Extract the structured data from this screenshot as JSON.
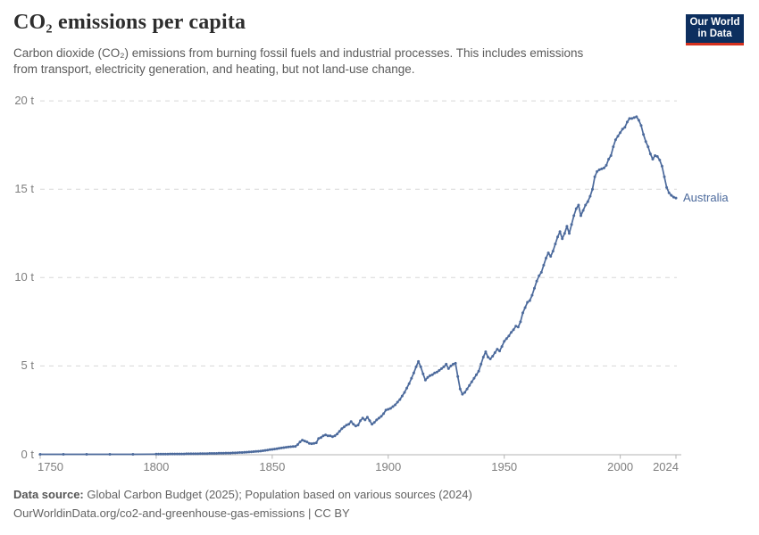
{
  "header": {
    "title": "CO₂ emissions per capita",
    "subtitle_lines": [
      "Carbon dioxide (CO₂) emissions from burning fossil fuels and industrial processes. This includes emissions",
      "from transport, electricity generation, and heating, but not land-use change."
    ],
    "logo": {
      "line1": "Our World",
      "line2": "in Data",
      "bg_color": "#0d2f5f",
      "accent_color": "#d5311e"
    }
  },
  "chart_data": {
    "type": "line",
    "title": "CO₂ emissions per capita",
    "xlabel": "",
    "ylabel": "",
    "x_range": [
      1750,
      2024
    ],
    "ylim": [
      0,
      20
    ],
    "grid": "horizontal-dashed",
    "legend_position": "end-of-line-label",
    "y_ticks": [
      {
        "value": 0,
        "label": "0 t"
      },
      {
        "value": 5,
        "label": "5 t"
      },
      {
        "value": 10,
        "label": "10 t"
      },
      {
        "value": 15,
        "label": "15 t"
      },
      {
        "value": 20,
        "label": "20 t"
      }
    ],
    "x_ticks": [
      {
        "value": 1750,
        "label": "1750"
      },
      {
        "value": 1800,
        "label": "1800"
      },
      {
        "value": 1850,
        "label": "1850"
      },
      {
        "value": 1900,
        "label": "1900"
      },
      {
        "value": 1950,
        "label": "1950"
      },
      {
        "value": 2000,
        "label": "2000"
      },
      {
        "value": 2024,
        "label": "2024"
      }
    ],
    "series": [
      {
        "name": "Australia",
        "color": "#4C6A9C",
        "unit": "t",
        "points": [
          [
            1750,
            0
          ],
          [
            1760,
            0
          ],
          [
            1770,
            0
          ],
          [
            1780,
            0
          ],
          [
            1790,
            0
          ],
          [
            1800,
            0.01
          ],
          [
            1801,
            0.01
          ],
          [
            1802,
            0.01
          ],
          [
            1803,
            0.01
          ],
          [
            1804,
            0.01
          ],
          [
            1805,
            0.01
          ],
          [
            1806,
            0.02
          ],
          [
            1807,
            0.02
          ],
          [
            1808,
            0.02
          ],
          [
            1809,
            0.02
          ],
          [
            1810,
            0.02
          ],
          [
            1811,
            0.02
          ],
          [
            1812,
            0.02
          ],
          [
            1813,
            0.03
          ],
          [
            1814,
            0.03
          ],
          [
            1815,
            0.03
          ],
          [
            1816,
            0.03
          ],
          [
            1817,
            0.03
          ],
          [
            1818,
            0.03
          ],
          [
            1819,
            0.04
          ],
          [
            1820,
            0.04
          ],
          [
            1821,
            0.04
          ],
          [
            1822,
            0.04
          ],
          [
            1823,
            0.05
          ],
          [
            1824,
            0.05
          ],
          [
            1825,
            0.05
          ],
          [
            1826,
            0.05
          ],
          [
            1827,
            0.06
          ],
          [
            1828,
            0.06
          ],
          [
            1829,
            0.06
          ],
          [
            1830,
            0.07
          ],
          [
            1831,
            0.07
          ],
          [
            1832,
            0.07
          ],
          [
            1833,
            0.08
          ],
          [
            1834,
            0.08
          ],
          [
            1835,
            0.09
          ],
          [
            1836,
            0.1
          ],
          [
            1837,
            0.1
          ],
          [
            1838,
            0.11
          ],
          [
            1839,
            0.12
          ],
          [
            1840,
            0.13
          ],
          [
            1841,
            0.14
          ],
          [
            1842,
            0.15
          ],
          [
            1843,
            0.16
          ],
          [
            1844,
            0.17
          ],
          [
            1845,
            0.18
          ],
          [
            1846,
            0.2
          ],
          [
            1847,
            0.22
          ],
          [
            1848,
            0.24
          ],
          [
            1849,
            0.26
          ],
          [
            1850,
            0.28
          ],
          [
            1851,
            0.3
          ],
          [
            1852,
            0.32
          ],
          [
            1853,
            0.34
          ],
          [
            1854,
            0.36
          ],
          [
            1855,
            0.38
          ],
          [
            1856,
            0.4
          ],
          [
            1857,
            0.42
          ],
          [
            1858,
            0.43
          ],
          [
            1859,
            0.44
          ],
          [
            1860,
            0.45
          ],
          [
            1861,
            0.55
          ],
          [
            1862,
            0.7
          ],
          [
            1863,
            0.8
          ],
          [
            1864,
            0.75
          ],
          [
            1865,
            0.7
          ],
          [
            1866,
            0.62
          ],
          [
            1867,
            0.6
          ],
          [
            1868,
            0.62
          ],
          [
            1869,
            0.65
          ],
          [
            1870,
            0.9
          ],
          [
            1871,
            0.95
          ],
          [
            1872,
            1.05
          ],
          [
            1873,
            1.1
          ],
          [
            1874,
            1.05
          ],
          [
            1875,
            1.05
          ],
          [
            1876,
            1.0
          ],
          [
            1877,
            1.05
          ],
          [
            1878,
            1.15
          ],
          [
            1879,
            1.3
          ],
          [
            1880,
            1.45
          ],
          [
            1881,
            1.55
          ],
          [
            1882,
            1.65
          ],
          [
            1883,
            1.7
          ],
          [
            1884,
            1.85
          ],
          [
            1885,
            1.7
          ],
          [
            1886,
            1.6
          ],
          [
            1887,
            1.65
          ],
          [
            1888,
            1.9
          ],
          [
            1889,
            2.05
          ],
          [
            1890,
            1.95
          ],
          [
            1891,
            2.1
          ],
          [
            1892,
            1.9
          ],
          [
            1893,
            1.7
          ],
          [
            1894,
            1.8
          ],
          [
            1895,
            1.95
          ],
          [
            1896,
            2.05
          ],
          [
            1897,
            2.15
          ],
          [
            1898,
            2.3
          ],
          [
            1899,
            2.5
          ],
          [
            1900,
            2.55
          ],
          [
            1901,
            2.6
          ],
          [
            1902,
            2.7
          ],
          [
            1903,
            2.8
          ],
          [
            1904,
            2.95
          ],
          [
            1905,
            3.1
          ],
          [
            1906,
            3.3
          ],
          [
            1907,
            3.5
          ],
          [
            1908,
            3.75
          ],
          [
            1909,
            4.0
          ],
          [
            1910,
            4.3
          ],
          [
            1911,
            4.6
          ],
          [
            1912,
            4.95
          ],
          [
            1913,
            5.25
          ],
          [
            1914,
            4.95
          ],
          [
            1915,
            4.55
          ],
          [
            1916,
            4.2
          ],
          [
            1917,
            4.35
          ],
          [
            1918,
            4.45
          ],
          [
            1919,
            4.5
          ],
          [
            1920,
            4.6
          ],
          [
            1921,
            4.65
          ],
          [
            1922,
            4.75
          ],
          [
            1923,
            4.85
          ],
          [
            1924,
            4.95
          ],
          [
            1925,
            5.1
          ],
          [
            1926,
            4.85
          ],
          [
            1927,
            5.0
          ],
          [
            1928,
            5.1
          ],
          [
            1929,
            5.15
          ],
          [
            1930,
            4.4
          ],
          [
            1931,
            3.7
          ],
          [
            1932,
            3.4
          ],
          [
            1933,
            3.5
          ],
          [
            1934,
            3.7
          ],
          [
            1935,
            3.9
          ],
          [
            1936,
            4.1
          ],
          [
            1937,
            4.3
          ],
          [
            1938,
            4.5
          ],
          [
            1939,
            4.7
          ],
          [
            1940,
            5.1
          ],
          [
            1941,
            5.5
          ],
          [
            1942,
            5.8
          ],
          [
            1943,
            5.5
          ],
          [
            1944,
            5.4
          ],
          [
            1945,
            5.55
          ],
          [
            1946,
            5.75
          ],
          [
            1947,
            5.95
          ],
          [
            1948,
            5.85
          ],
          [
            1949,
            6.1
          ],
          [
            1950,
            6.4
          ],
          [
            1951,
            6.55
          ],
          [
            1952,
            6.7
          ],
          [
            1953,
            6.9
          ],
          [
            1954,
            7.05
          ],
          [
            1955,
            7.25
          ],
          [
            1956,
            7.2
          ],
          [
            1957,
            7.5
          ],
          [
            1958,
            8.0
          ],
          [
            1959,
            8.3
          ],
          [
            1960,
            8.6
          ],
          [
            1961,
            8.7
          ],
          [
            1962,
            9.0
          ],
          [
            1963,
            9.4
          ],
          [
            1964,
            9.8
          ],
          [
            1965,
            10.1
          ],
          [
            1966,
            10.3
          ],
          [
            1967,
            10.7
          ],
          [
            1968,
            11.1
          ],
          [
            1969,
            11.4
          ],
          [
            1970,
            11.2
          ],
          [
            1971,
            11.5
          ],
          [
            1972,
            11.9
          ],
          [
            1973,
            12.3
          ],
          [
            1974,
            12.6
          ],
          [
            1975,
            12.2
          ],
          [
            1976,
            12.5
          ],
          [
            1977,
            12.9
          ],
          [
            1978,
            12.5
          ],
          [
            1979,
            13.0
          ],
          [
            1980,
            13.5
          ],
          [
            1981,
            13.9
          ],
          [
            1982,
            14.1
          ],
          [
            1983,
            13.5
          ],
          [
            1984,
            13.8
          ],
          [
            1985,
            14.1
          ],
          [
            1986,
            14.3
          ],
          [
            1987,
            14.6
          ],
          [
            1988,
            15.0
          ],
          [
            1989,
            15.7
          ],
          [
            1990,
            16.0
          ],
          [
            1991,
            16.1
          ],
          [
            1992,
            16.15
          ],
          [
            1993,
            16.2
          ],
          [
            1994,
            16.35
          ],
          [
            1995,
            16.7
          ],
          [
            1996,
            16.9
          ],
          [
            1997,
            17.4
          ],
          [
            1998,
            17.8
          ],
          [
            1999,
            18.0
          ],
          [
            2000,
            18.2
          ],
          [
            2001,
            18.4
          ],
          [
            2002,
            18.5
          ],
          [
            2003,
            18.8
          ],
          [
            2004,
            19.0
          ],
          [
            2005,
            19.0
          ],
          [
            2006,
            19.05
          ],
          [
            2007,
            19.1
          ],
          [
            2008,
            18.9
          ],
          [
            2009,
            18.6
          ],
          [
            2010,
            18.1
          ],
          [
            2011,
            17.7
          ],
          [
            2012,
            17.4
          ],
          [
            2013,
            17.0
          ],
          [
            2014,
            16.7
          ],
          [
            2015,
            16.9
          ],
          [
            2016,
            16.85
          ],
          [
            2017,
            16.65
          ],
          [
            2018,
            16.3
          ],
          [
            2019,
            15.7
          ],
          [
            2020,
            15.1
          ],
          [
            2021,
            14.8
          ],
          [
            2022,
            14.65
          ],
          [
            2023,
            14.55
          ],
          [
            2024,
            14.5
          ]
        ]
      }
    ],
    "style": {
      "grid_color": "#d8d8d8",
      "axis_color": "#b3b3b3",
      "marker_radius": 1.5,
      "line_width": 1.7
    }
  },
  "footer": {
    "source_label": "Data source:",
    "source_text": " Global Carbon Budget (2025); Population based on various sources (2024)",
    "link_line": "OurWorldinData.org/co2-and-greenhouse-gas-emissions | CC BY"
  }
}
